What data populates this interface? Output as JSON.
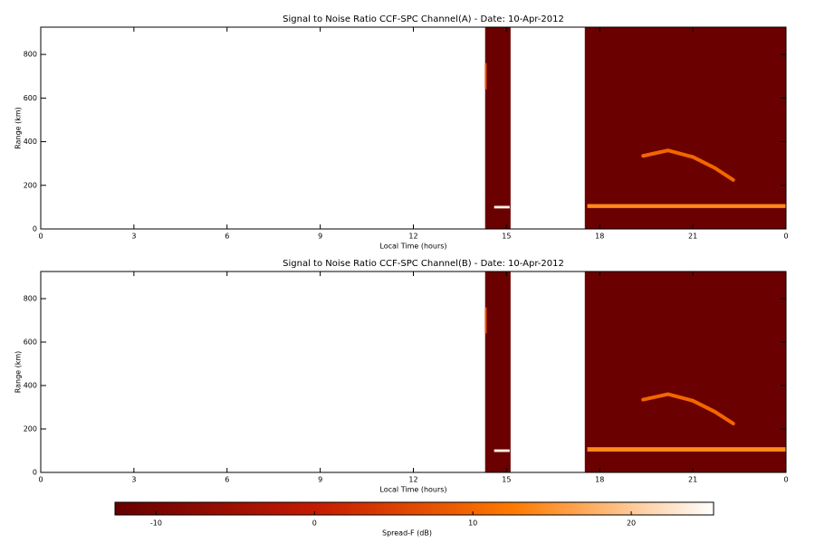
{
  "chart_data": [
    {
      "type": "heatmap",
      "title": "Signal to Noise Ratio CCF-SPC Channel(A) - Date: 10-Apr-2012",
      "xlabel": "Local Time (hours)",
      "ylabel": "Range (km)",
      "xlim": [
        0,
        24
      ],
      "xticks": [
        0,
        3,
        6,
        9,
        12,
        15,
        18,
        21,
        {
          "value": 24,
          "label": "0"
        }
      ],
      "ylim": [
        0,
        925
      ],
      "yticks": [
        0,
        200,
        400,
        600,
        800
      ],
      "segments": [
        {
          "x": [
            14.31,
            15.13
          ],
          "value": -12
        },
        {
          "x": [
            17.52,
            24
          ],
          "value": -12
        }
      ],
      "echoes": [
        {
          "x": [
            14.6,
            15.1
          ],
          "range": [
            94,
            106
          ],
          "value": 24
        },
        {
          "x": [
            14.3,
            14.36
          ],
          "range": [
            640,
            760
          ],
          "value": 8
        },
        {
          "x": [
            17.6,
            24
          ],
          "range": [
            96,
            114
          ],
          "value": 14
        }
      ],
      "traces": [
        {
          "x": [
            19.4,
            20.2,
            21.0,
            21.7,
            22.3
          ],
          "range": [
            335,
            360,
            330,
            280,
            225
          ],
          "value": 10
        }
      ]
    },
    {
      "type": "heatmap",
      "title": "Signal to Noise Ratio CCF-SPC Channel(B) - Date: 10-Apr-2012",
      "xlabel": "Local Time (hours)",
      "ylabel": "Range (km)",
      "xlim": [
        0,
        24
      ],
      "xticks": [
        0,
        3,
        6,
        9,
        12,
        15,
        18,
        21,
        {
          "value": 24,
          "label": "0"
        }
      ],
      "ylim": [
        0,
        925
      ],
      "yticks": [
        0,
        200,
        400,
        600,
        800
      ],
      "segments": [
        {
          "x": [
            14.31,
            15.13
          ],
          "value": -12
        },
        {
          "x": [
            17.52,
            24
          ],
          "value": -12
        }
      ],
      "echoes": [
        {
          "x": [
            14.6,
            15.1
          ],
          "range": [
            94,
            106
          ],
          "value": 24
        },
        {
          "x": [
            14.3,
            14.36
          ],
          "range": [
            640,
            760
          ],
          "value": 8
        },
        {
          "x": [
            17.6,
            24
          ],
          "range": [
            96,
            116
          ],
          "value": 14
        }
      ],
      "traces": [
        {
          "x": [
            19.4,
            20.2,
            21.0,
            21.7,
            22.3
          ],
          "range": [
            335,
            360,
            330,
            280,
            225
          ],
          "value": 10
        }
      ]
    }
  ],
  "colorbar": {
    "label": "Spread-F (dB)",
    "lim": [
      -12.6,
      25.2
    ],
    "ticks": [
      -10,
      0,
      10,
      20
    ],
    "colors": [
      "#650000",
      "#c41a00",
      "#ff7a00",
      "#ffffff"
    ]
  }
}
